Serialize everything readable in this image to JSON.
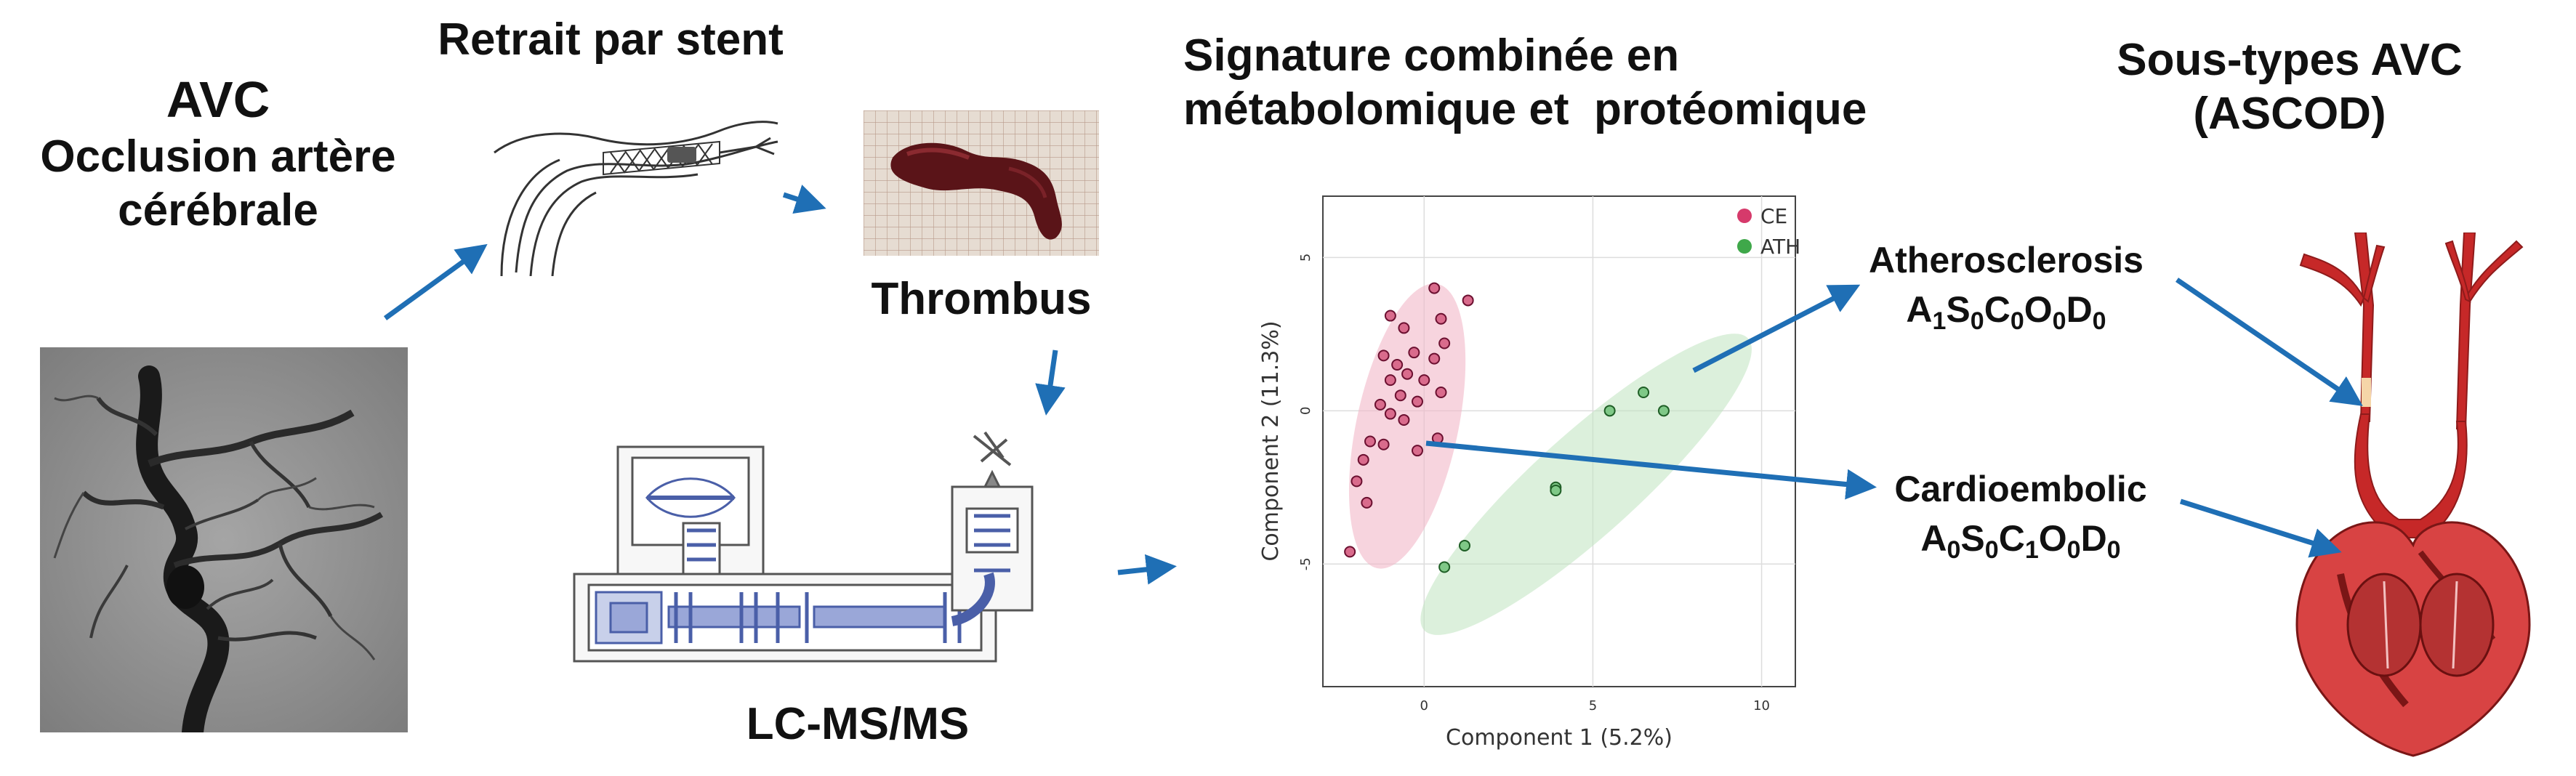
{
  "stroke": {
    "title_line1": "AVC",
    "title_line2": "Occlusion artère",
    "title_line3": "cérébrale"
  },
  "stent": {
    "title": "Retrait par stent"
  },
  "thrombus": {
    "label": "Thrombus"
  },
  "lcms": {
    "label": "LC-MS/MS"
  },
  "signature": {
    "title_line1": "Signature combinée en",
    "title_line2": "métabolomique et  protéomique"
  },
  "subtypes": {
    "title_line1": "Sous-types AVC",
    "title_line2": "(ASCOD)"
  },
  "athero": {
    "name": "Atherosclerosis",
    "code": [
      [
        "A",
        "1"
      ],
      [
        "S",
        "0"
      ],
      [
        "C",
        "0"
      ],
      [
        "O",
        "0"
      ],
      [
        "D",
        "0"
      ]
    ]
  },
  "cardio": {
    "name": "Cardioembolic",
    "code": [
      [
        "A",
        "0"
      ],
      [
        "S",
        "0"
      ],
      [
        "C",
        "1"
      ],
      [
        "O",
        "0"
      ],
      [
        "D",
        "0"
      ]
    ]
  },
  "colors": {
    "arrow": "#1f6fb5",
    "ce": "#d63a6b",
    "ce_fill": "#f2b8c8",
    "ath": "#3fa84a",
    "ath_fill": "#bfe3bf",
    "instrument": "#4a5fa8"
  },
  "chart_data": {
    "type": "scatter",
    "xlabel": "Component 1 (5.2%)",
    "ylabel": "Component 2 (11.3%)",
    "xlim": [
      -3,
      11
    ],
    "ylim": [
      -9,
      7
    ],
    "xticks": [
      "0",
      "5",
      "10"
    ],
    "yticks": [
      "5",
      "0",
      "-5"
    ],
    "legend_position": "top-right",
    "series": [
      {
        "name": "CE",
        "points": [
          [
            0.3,
            4.0
          ],
          [
            1.3,
            3.6
          ],
          [
            -1.0,
            3.1
          ],
          [
            0.5,
            3.0
          ],
          [
            -0.6,
            2.7
          ],
          [
            0.6,
            2.2
          ],
          [
            -1.2,
            1.8
          ],
          [
            -0.3,
            1.9
          ],
          [
            0.3,
            1.7
          ],
          [
            -0.8,
            1.5
          ],
          [
            -0.5,
            1.2
          ],
          [
            0.0,
            1.0
          ],
          [
            -1.0,
            1.0
          ],
          [
            0.5,
            0.6
          ],
          [
            -0.7,
            0.5
          ],
          [
            -1.3,
            0.2
          ],
          [
            -0.2,
            0.3
          ],
          [
            -1.0,
            -0.1
          ],
          [
            -0.6,
            -0.3
          ],
          [
            -1.6,
            -1.0
          ],
          [
            -1.2,
            -1.1
          ],
          [
            0.4,
            -0.9
          ],
          [
            -0.2,
            -1.3
          ],
          [
            -1.8,
            -1.6
          ],
          [
            -1.7,
            -3.0
          ],
          [
            -2.0,
            -2.3
          ],
          [
            -2.2,
            -4.6
          ]
        ]
      },
      {
        "name": "ATH",
        "points": [
          [
            6.5,
            0.6
          ],
          [
            5.5,
            0.0
          ],
          [
            7.1,
            0.0
          ],
          [
            3.9,
            -2.5
          ],
          [
            3.9,
            -2.6
          ],
          [
            1.2,
            -4.4
          ],
          [
            0.6,
            -5.1
          ]
        ]
      }
    ]
  }
}
